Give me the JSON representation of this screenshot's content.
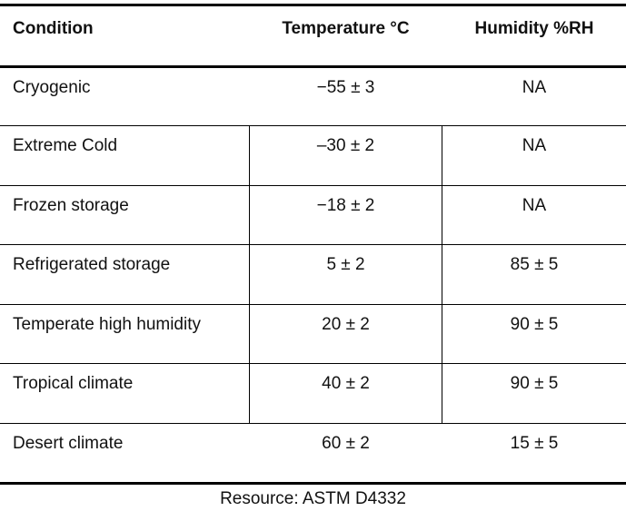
{
  "table": {
    "header": [
      "Condition",
      "Temperature °C",
      "Humidity %RH"
    ],
    "rows": [
      [
        "Cryogenic",
        "−55 ± 3",
        "NA"
      ],
      [
        "Extreme Cold",
        "–30 ± 2",
        "NA"
      ],
      [
        "Frozen storage",
        "−18 ± 2",
        "NA"
      ],
      [
        "Refrigerated storage",
        "5 ± 2",
        "85 ± 5"
      ],
      [
        "Temperate high humidity",
        "20 ± 2",
        "90 ± 5"
      ],
      [
        "Tropical climate",
        "40 ± 2",
        "90 ± 5"
      ],
      [
        "Desert climate",
        "60 ± 2",
        "15 ± 5"
      ]
    ]
  },
  "caption": "Resource: ASTM D4332"
}
